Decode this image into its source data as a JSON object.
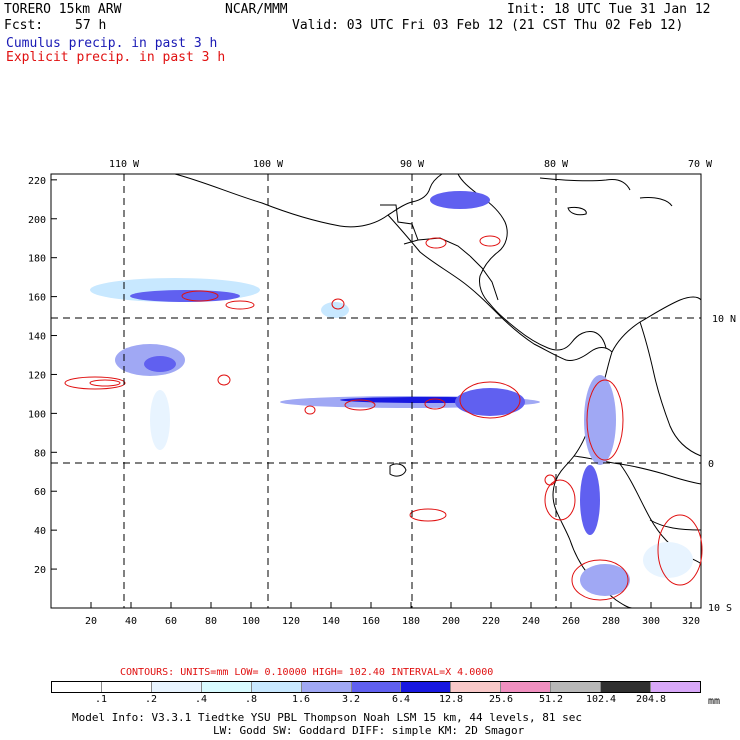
{
  "header": {
    "model": "TORERO  15km ARW",
    "center": "NCAR/MMM",
    "init": "Init: 18 UTC Tue 31 Jan 12",
    "fcst_label": "Fcst:",
    "fcst_value": "57 h",
    "valid": "Valid: 03 UTC Fri 03 Feb 12 (21 CST Thu 02 Feb 12)",
    "cumulus": "Cumulus precip. in past 3 h",
    "explicit": "Explicit precip. in past 3 h"
  },
  "map": {
    "lon_labels": [
      "110 W",
      "100 W",
      "90 W",
      "80 W",
      "70 W"
    ],
    "lat_labels": [
      "10 N",
      "0",
      "10 S"
    ],
    "x_ticks": [
      "20",
      "40",
      "60",
      "80",
      "100",
      "120",
      "140",
      "160",
      "180",
      "200",
      "220",
      "240",
      "260",
      "280",
      "300",
      "320"
    ],
    "y_ticks": [
      "220",
      "200",
      "180",
      "160",
      "140",
      "120",
      "100",
      "80",
      "60",
      "40",
      "20"
    ]
  },
  "footer": {
    "contours_line": "CONTOURS:  UNITS=mm  LOW= 0.10000      HIGH=  102.40      INTERVAL=X  4.0000",
    "colorbar_labels": [
      ".1",
      ".2",
      ".4",
      ".8",
      "1.6",
      "3.2",
      "6.4",
      "12.8",
      "25.6",
      "51.2",
      "102.4",
      "204.8"
    ],
    "colorbar_unit": "mm",
    "colorbar_colors": [
      "#ffffff",
      "#ffffff",
      "#e8f4ff",
      "#d8fbff",
      "#c8e8ff",
      "#a0a8f4",
      "#6060f0",
      "#1818e0",
      "#f8c8c8",
      "#f090c0",
      "#b8b8b8",
      "#303030",
      "#d8a8f8"
    ],
    "model_info_1": "Model Info: V3.3.1    Tiedtke YSU PBL  Thompson    Noah LSM  15 km,   44 levels,   81 sec",
    "model_info_2": "LW: Godd SW: Goddard DIFF: simple KM: 2D Smagor"
  }
}
